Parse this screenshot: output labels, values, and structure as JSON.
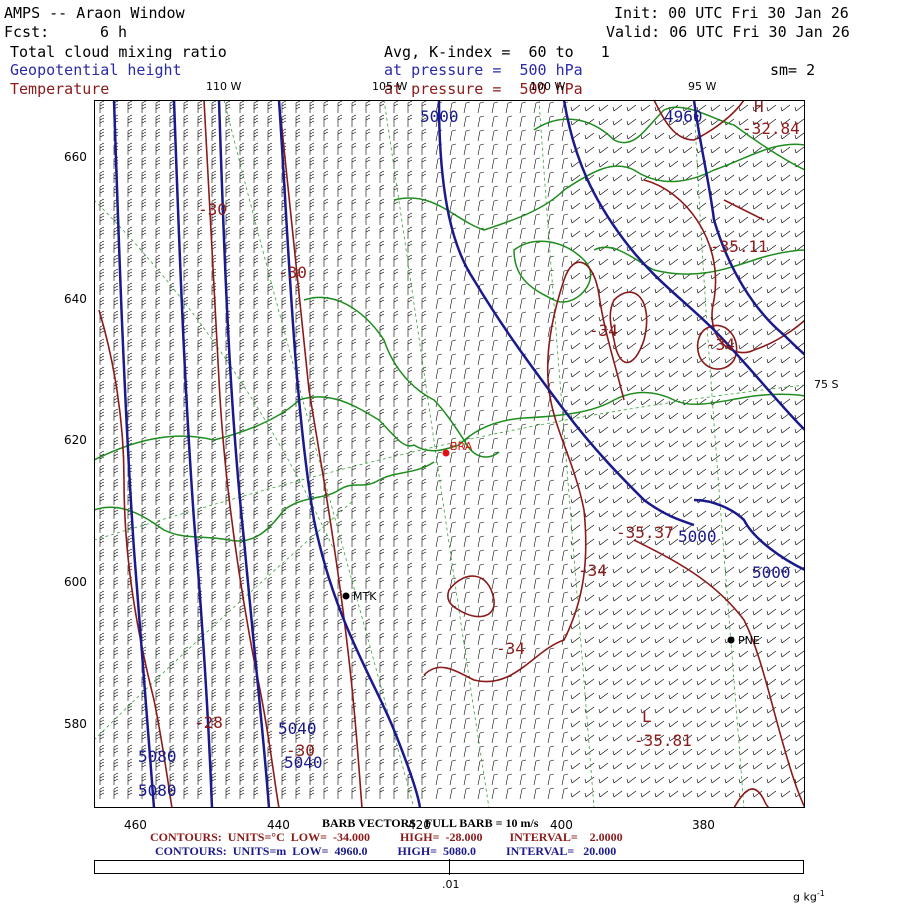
{
  "header": {
    "title": "AMPS -- Araon Window",
    "init": "Init: 00 UTC Fri 30 Jan 26",
    "fcst_label": "Fcst:",
    "fcst_value": "6 h",
    "valid": "Valid: 06 UTC Fri 30 Jan 26",
    "field1": "Total cloud mixing ratio",
    "field2": "Geopotential height",
    "field3": "Temperature",
    "avg": "Avg, K-index =  60 to   1",
    "pressure1": "at pressure =  500 hPa",
    "pressure2": "at pressure =  500 hPa",
    "sm": "sm= 2"
  },
  "axes": {
    "y_ticks": [
      "660",
      "640",
      "620",
      "600",
      "580"
    ],
    "x_ticks": [
      "460",
      "440",
      "420",
      "400",
      "380"
    ],
    "lon_labels": [
      "110 W",
      "105 W",
      "100 W",
      "95 W"
    ],
    "lat_label": "75 S"
  },
  "stations": [
    "BRA",
    "MTK",
    "PNE"
  ],
  "contour_labels": {
    "height": [
      "5000",
      "4960",
      "5000",
      "5000",
      "5040",
      "5040",
      "5080",
      "5080"
    ],
    "temp": [
      "-32.84",
      "-35.11",
      "-34",
      "-34",
      "-30",
      "-30",
      "-35.37",
      "-34",
      "-34",
      "-35.81",
      "-28",
      "-30"
    ],
    "marks": [
      "H",
      "L"
    ]
  },
  "footer": {
    "barb": "BARB VECTORS   FULL BARB = 10 m/s",
    "temp_contours": "CONTOURS:  UNITS=°C  LOW=  -34.000          HIGH=  -28.000         INTERVAL=    2.0000",
    "height_contours": "CONTOURS:  UNITS=m  LOW=  4960.0          HIGH=  5080.0          INTERVAL=   20.000",
    "cbar_tick": ".01",
    "cbar_units": "g kg",
    "cbar_units_exp": "-1"
  },
  "colors": {
    "height": "#1a1a8c",
    "temperature": "#8b1a1a",
    "cloud": "#1e8c1e",
    "graticule": "#3aa03a",
    "barb": "#000000",
    "station": "#e01010"
  }
}
